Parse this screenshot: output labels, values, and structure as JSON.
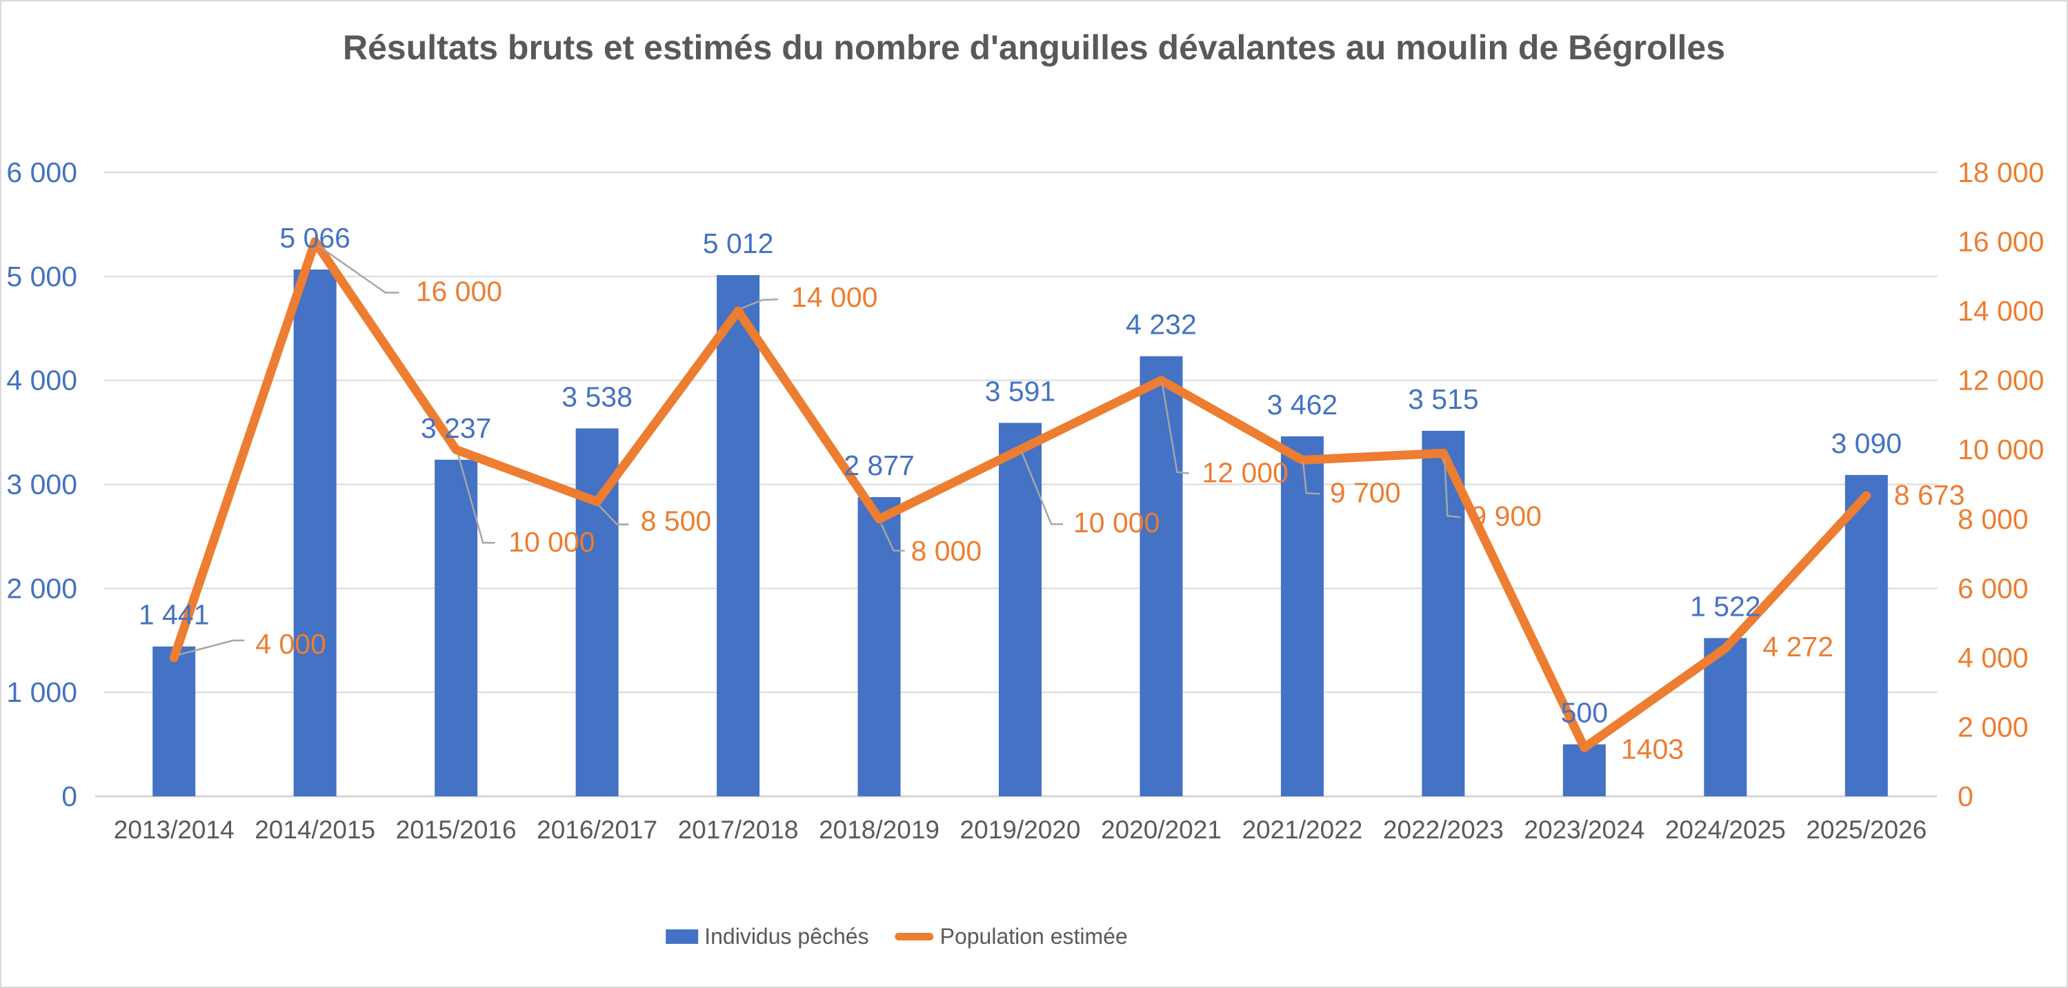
{
  "title": "Résultats bruts et estimés du nombre d'anguilles dévalantes au moulin de Bégrolles",
  "chart_data": {
    "type": "combo",
    "categories": [
      "2013/2014",
      "2014/2015",
      "2015/2016",
      "2016/2017",
      "2017/2018",
      "2018/2019",
      "2019/2020",
      "2020/2021",
      "2021/2022",
      "2022/2023",
      "2023/2024",
      "2024/2025",
      "2025/2026"
    ],
    "series": [
      {
        "name": "Individus pêchés",
        "chart_type": "bar",
        "axis": "left",
        "color": "#4472C4",
        "values": [
          1441,
          5066,
          3237,
          3538,
          5012,
          2877,
          3591,
          4232,
          3462,
          3515,
          500,
          1522,
          3090
        ],
        "labels": [
          "1 441",
          "5 066",
          "3 237",
          "3 538",
          "5 012",
          "2 877",
          "3 591",
          "4 232",
          "3 462",
          "3 515",
          "500",
          "1 522",
          "3 090"
        ]
      },
      {
        "name": "Population estimée",
        "chart_type": "line",
        "axis": "right",
        "color": "#ED7D31",
        "values": [
          4000,
          16000,
          10000,
          8500,
          14000,
          8000,
          10000,
          12000,
          9700,
          9900,
          1403,
          4272,
          8673
        ],
        "labels": [
          "4 000",
          "16 000",
          "10 000",
          "8 500",
          "14 000",
          "8 000",
          "10 000",
          "12 000",
          "9 700",
          "9 900",
          "1403",
          "4 272",
          "8 673"
        ]
      }
    ],
    "left_axis": {
      "min": 0,
      "max": 6000,
      "step": 1000,
      "color": "#4472C4",
      "tick_labels": [
        "0",
        "1 000",
        "2 000",
        "3 000",
        "4 000",
        "5 000",
        "6 000"
      ]
    },
    "right_axis": {
      "min": 0,
      "max": 18000,
      "step": 2000,
      "color": "#ED7D31",
      "tick_labels": [
        "0",
        "2 000",
        "4 000",
        "6 000",
        "8 000",
        "10 000",
        "12 000",
        "14 000",
        "16 000",
        "18 000"
      ]
    },
    "gridlines": true,
    "legend_position": "bottom"
  },
  "legend": {
    "items": [
      {
        "label": "Individus pêchés",
        "swatch": "bar",
        "color": "#4472C4"
      },
      {
        "label": "Population estimée",
        "swatch": "line",
        "color": "#ED7D31"
      }
    ]
  },
  "colors": {
    "background": "#FFFFFF",
    "border": "#D9D9D9",
    "gridline": "#D9D9D9",
    "axis_line": "#D6D6D6",
    "leader_line": "#A6A6A6",
    "title_text": "#595959",
    "category_text": "#595959"
  }
}
